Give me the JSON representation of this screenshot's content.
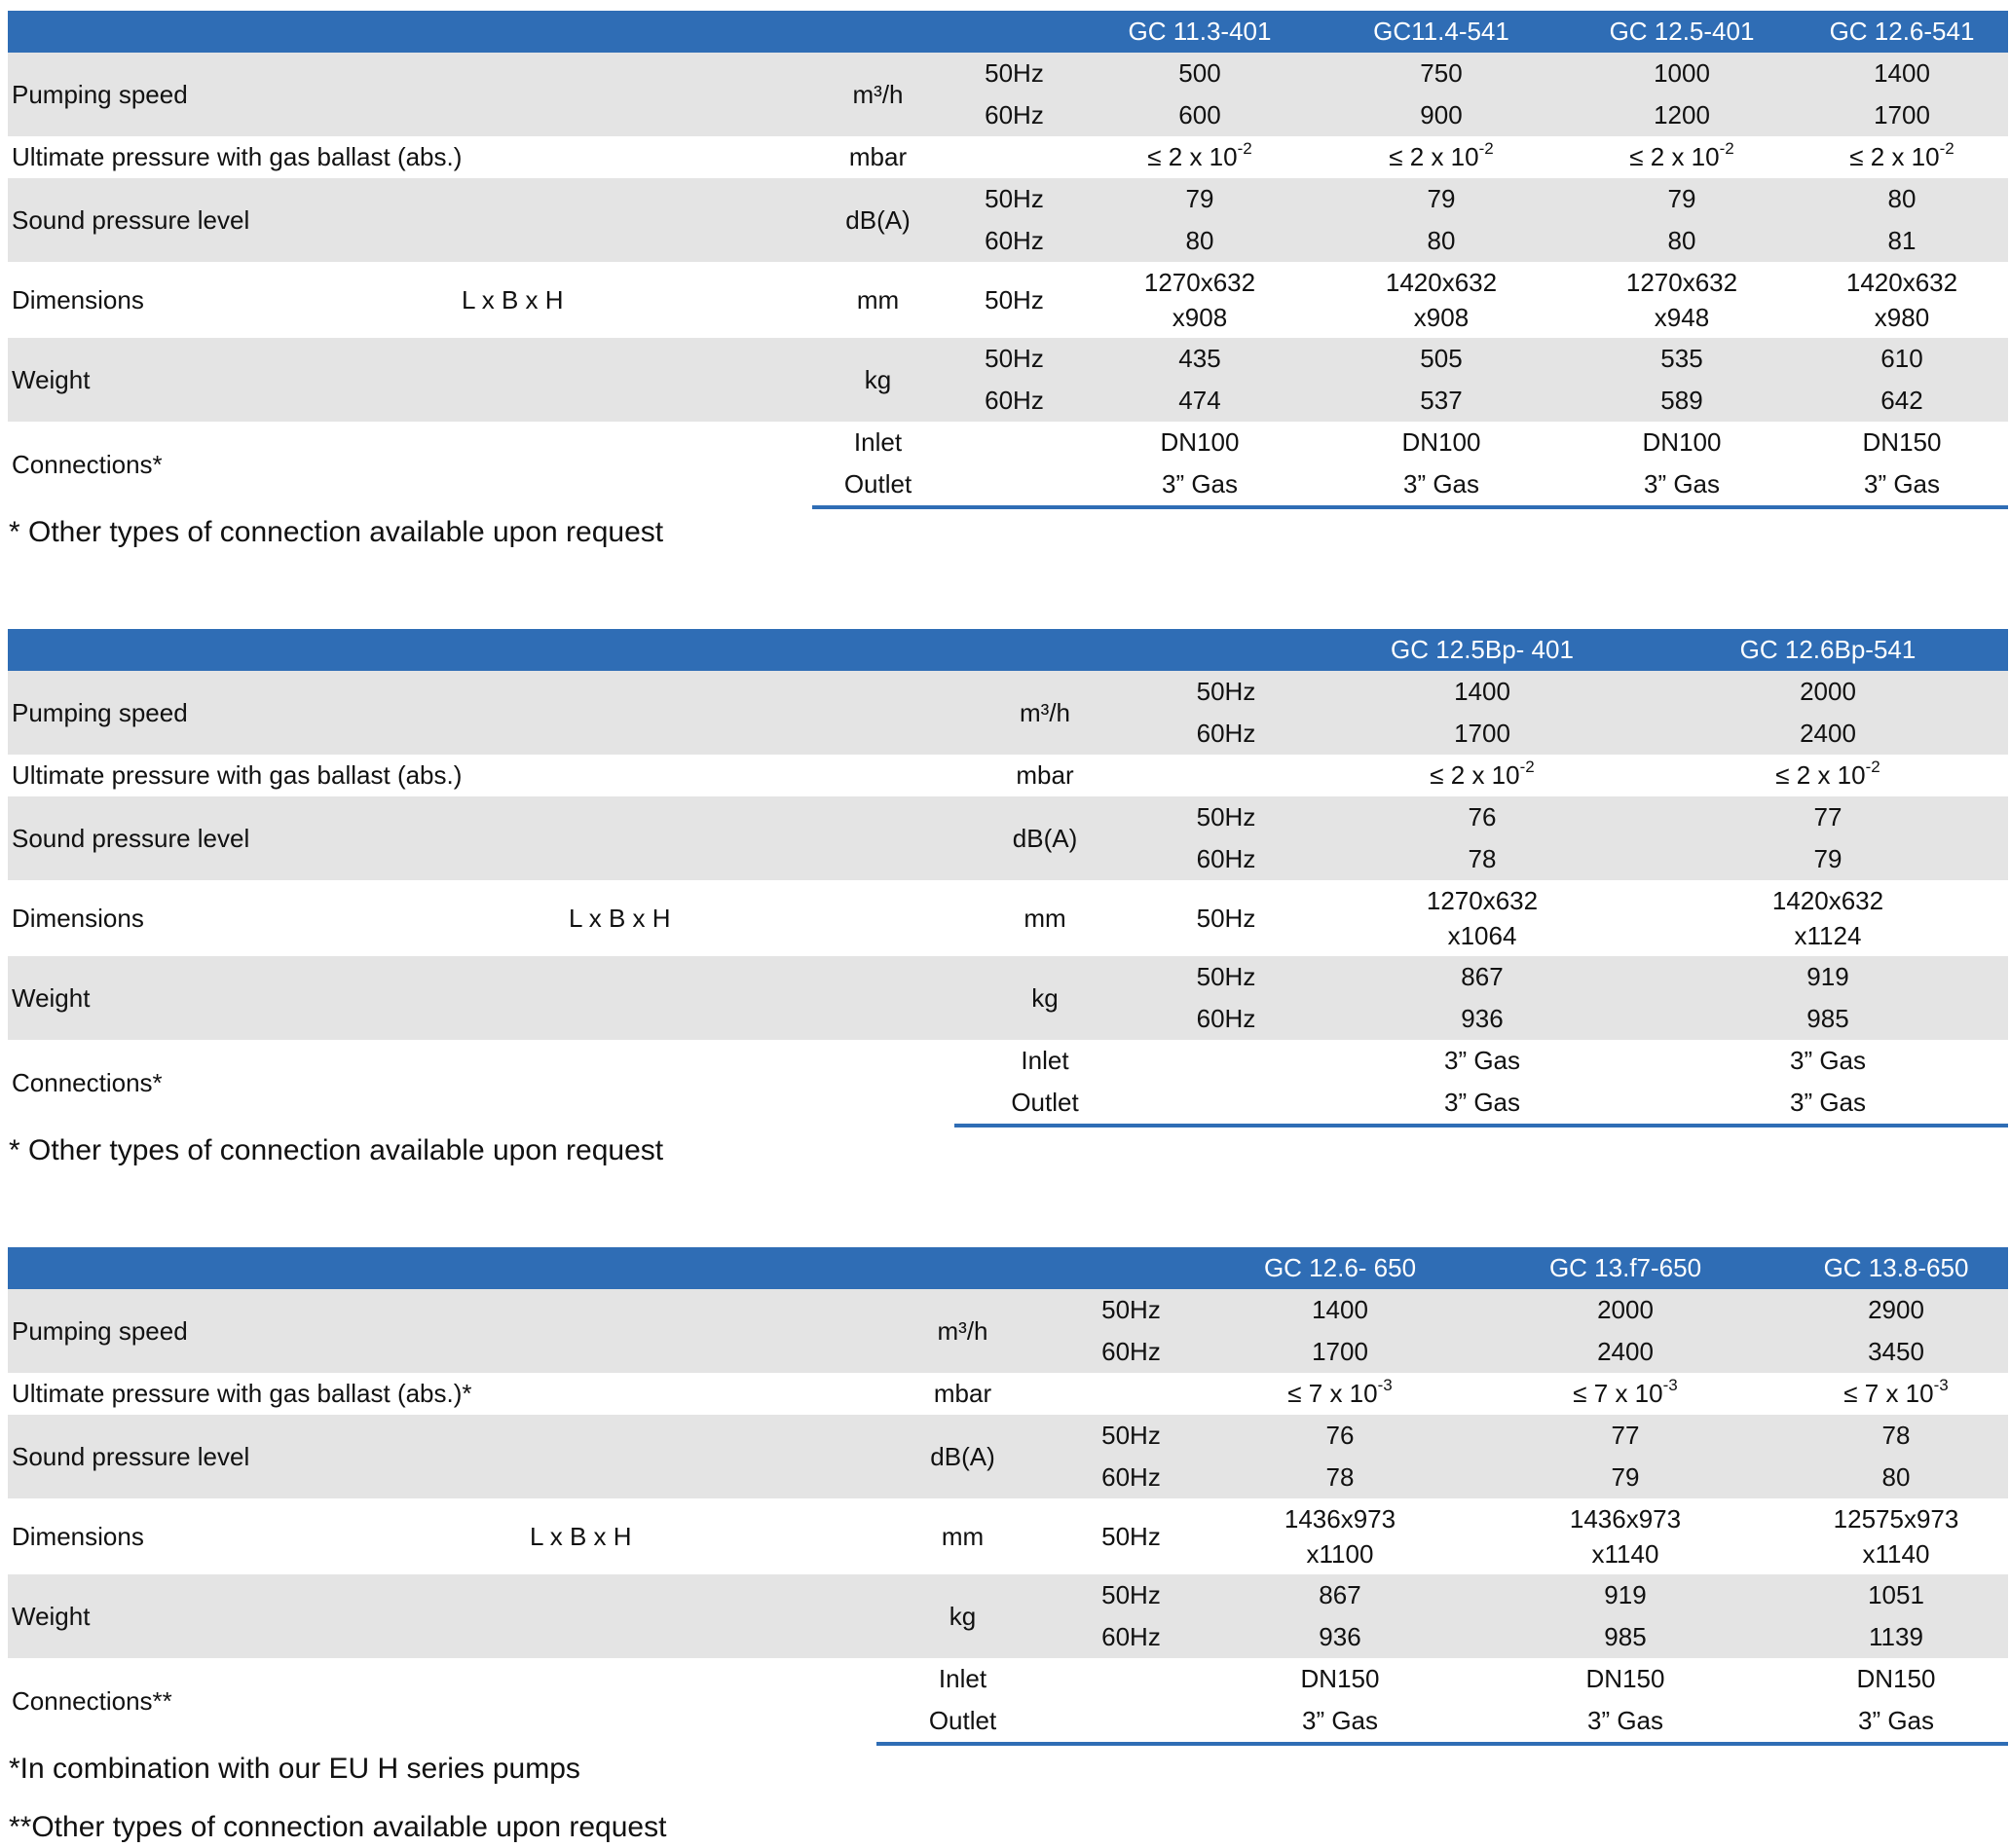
{
  "tables": [
    {
      "models": [
        "GC 11.3-401",
        "GC11.4-541",
        "GC 12.5-401",
        "GC 12.6-541"
      ],
      "pumping": {
        "label": "Pumping speed",
        "unit": "m³/h",
        "f50": "50Hz",
        "f60": "60Hz",
        "v50": [
          "500",
          "750",
          "1000",
          "1400"
        ],
        "v60": [
          "600",
          "900",
          "1200",
          "1700"
        ]
      },
      "ultimate": {
        "label": "Ultimate pressure with gas ballast (abs.)",
        "unit": "mbar",
        "values": [
          {
            "base": "≤ 2 x 10",
            "exp": "-2"
          },
          {
            "base": "≤ 2 x 10",
            "exp": "-2"
          },
          {
            "base": "≤ 2 x 10",
            "exp": "-2"
          },
          {
            "base": "≤ 2 x 10",
            "exp": "-2"
          }
        ]
      },
      "sound": {
        "label": "Sound pressure level",
        "unit": "dB(A)",
        "f50": "50Hz",
        "f60": "60Hz",
        "v50": [
          "79",
          "79",
          "79",
          "80"
        ],
        "v60": [
          "80",
          "80",
          "80",
          "81"
        ]
      },
      "dimensions": {
        "label": "Dimensions",
        "sub": "L x B x H",
        "unit": "mm",
        "freq": "50Hz",
        "line1": [
          "1270x632",
          "1420x632",
          "1270x632",
          "1420x632"
        ],
        "line2": [
          "x908",
          "x908",
          "x948",
          "x980"
        ]
      },
      "weight": {
        "label": "Weight",
        "unit": "kg",
        "f50": "50Hz",
        "f60": "60Hz",
        "v50": [
          "435",
          "505",
          "535",
          "610"
        ],
        "v60": [
          "474",
          "537",
          "589",
          "642"
        ]
      },
      "connections": {
        "label": "Connections*",
        "inlet": "Inlet",
        "outlet": "Outlet",
        "vin": [
          "DN100",
          "DN100",
          "DN100",
          "DN150"
        ],
        "vout": [
          "3” Gas",
          "3” Gas",
          "3” Gas",
          "3” Gas"
        ]
      },
      "notes": [
        "* Other types of connection available upon request"
      ]
    },
    {
      "models": [
        "GC 12.5Bp- 401",
        "GC 12.6Bp-541"
      ],
      "pumping": {
        "label": "Pumping speed",
        "unit": "m³/h",
        "f50": "50Hz",
        "f60": "60Hz",
        "v50": [
          "1400",
          "2000"
        ],
        "v60": [
          "1700",
          "2400"
        ]
      },
      "ultimate": {
        "label": "Ultimate pressure with gas ballast (abs.)",
        "unit": "mbar",
        "values": [
          {
            "base": "≤ 2 x 10",
            "exp": "-2"
          },
          {
            "base": "≤ 2 x 10",
            "exp": "-2"
          }
        ]
      },
      "sound": {
        "label": "Sound pressure level",
        "unit": "dB(A)",
        "f50": "50Hz",
        "f60": "60Hz",
        "v50": [
          "76",
          "77"
        ],
        "v60": [
          "78",
          "79"
        ]
      },
      "dimensions": {
        "label": "Dimensions",
        "sub": "L x B x H",
        "unit": "mm",
        "freq": "50Hz",
        "line1": [
          "1270x632",
          "1420x632"
        ],
        "line2": [
          "x1064",
          "x1124"
        ]
      },
      "weight": {
        "label": "Weight",
        "unit": "kg",
        "f50": "50Hz",
        "f60": "60Hz",
        "v50": [
          "867",
          "919"
        ],
        "v60": [
          "936",
          "985"
        ]
      },
      "connections": {
        "label": "Connections*",
        "inlet": "Inlet",
        "outlet": "Outlet",
        "vin": [
          "3” Gas",
          "3” Gas"
        ],
        "vout": [
          "3” Gas",
          "3” Gas"
        ]
      },
      "notes": [
        "* Other types of connection available upon request"
      ]
    },
    {
      "models": [
        "GC 12.6- 650",
        "GC 13.f7-650",
        "GC 13.8-650"
      ],
      "pumping": {
        "label": "Pumping speed",
        "unit": "m³/h",
        "f50": "50Hz",
        "f60": "60Hz",
        "v50": [
          "1400",
          "2000",
          "2900"
        ],
        "v60": [
          "1700",
          "2400",
          "3450"
        ]
      },
      "ultimate": {
        "label": "Ultimate pressure with gas ballast (abs.)*",
        "unit": "mbar",
        "values": [
          {
            "base": "≤ 7 x 10",
            "exp": "-3"
          },
          {
            "base": "≤ 7 x 10",
            "exp": "-3"
          },
          {
            "base": "≤ 7 x 10",
            "exp": "-3"
          }
        ]
      },
      "sound": {
        "label": "Sound pressure level",
        "unit": "dB(A)",
        "f50": "50Hz",
        "f60": "60Hz",
        "v50": [
          "76",
          "77",
          "78"
        ],
        "v60": [
          "78",
          "79",
          "80"
        ]
      },
      "dimensions": {
        "label": "Dimensions",
        "sub": "L x B x H",
        "unit": "mm",
        "freq": "50Hz",
        "line1": [
          "1436x973",
          "1436x973",
          "12575x973"
        ],
        "line2": [
          "x1100",
          "x1140",
          "x1140"
        ]
      },
      "weight": {
        "label": "Weight",
        "unit": "kg",
        "f50": "50Hz",
        "f60": "60Hz",
        "v50": [
          "867",
          "919",
          "1051"
        ],
        "v60": [
          "936",
          "985",
          "1139"
        ]
      },
      "connections": {
        "label": "Connections**",
        "inlet": "Inlet",
        "outlet": "Outlet",
        "vin": [
          "DN150",
          "DN150",
          "DN150"
        ],
        "vout": [
          "3” Gas",
          "3” Gas",
          "3” Gas"
        ]
      },
      "notes": [
        "*In combination with our EU H series pumps",
        "**Other types of connection available upon request"
      ]
    }
  ]
}
